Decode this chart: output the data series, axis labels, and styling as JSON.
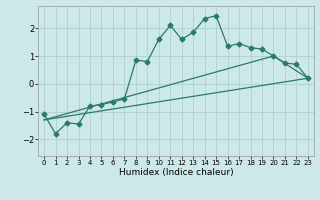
{
  "xlabel": "Humidex (Indice chaleur)",
  "background_color": "#cde8e8",
  "grid_color": "#b0d0d0",
  "line_color": "#2a7a6a",
  "xlim": [
    -0.5,
    23.5
  ],
  "ylim": [
    -2.6,
    2.8
  ],
  "xticks": [
    0,
    1,
    2,
    3,
    4,
    5,
    6,
    7,
    8,
    9,
    10,
    11,
    12,
    13,
    14,
    15,
    16,
    17,
    18,
    19,
    20,
    21,
    22,
    23
  ],
  "yticks": [
    -2,
    -1,
    0,
    1,
    2
  ],
  "line1_x": [
    0,
    1,
    2,
    3,
    4,
    5,
    6,
    7,
    8,
    9,
    10,
    11,
    12,
    13,
    14,
    15,
    16,
    17,
    18,
    19,
    20,
    21,
    22,
    23
  ],
  "line1_y": [
    -1.1,
    -1.8,
    -1.4,
    -1.45,
    -0.8,
    -0.75,
    -0.65,
    -0.55,
    0.85,
    0.8,
    1.6,
    2.1,
    1.6,
    1.85,
    2.35,
    2.45,
    1.35,
    1.45,
    1.3,
    1.25,
    1.0,
    0.75,
    0.7,
    0.2
  ],
  "line2_x": [
    0,
    23
  ],
  "line2_y": [
    -1.3,
    0.2
  ],
  "line3_x": [
    0,
    20,
    23
  ],
  "line3_y": [
    -1.3,
    1.0,
    0.2
  ],
  "xlabel_fontsize": 6.5,
  "ytick_fontsize": 6.0,
  "xtick_fontsize": 5.0
}
